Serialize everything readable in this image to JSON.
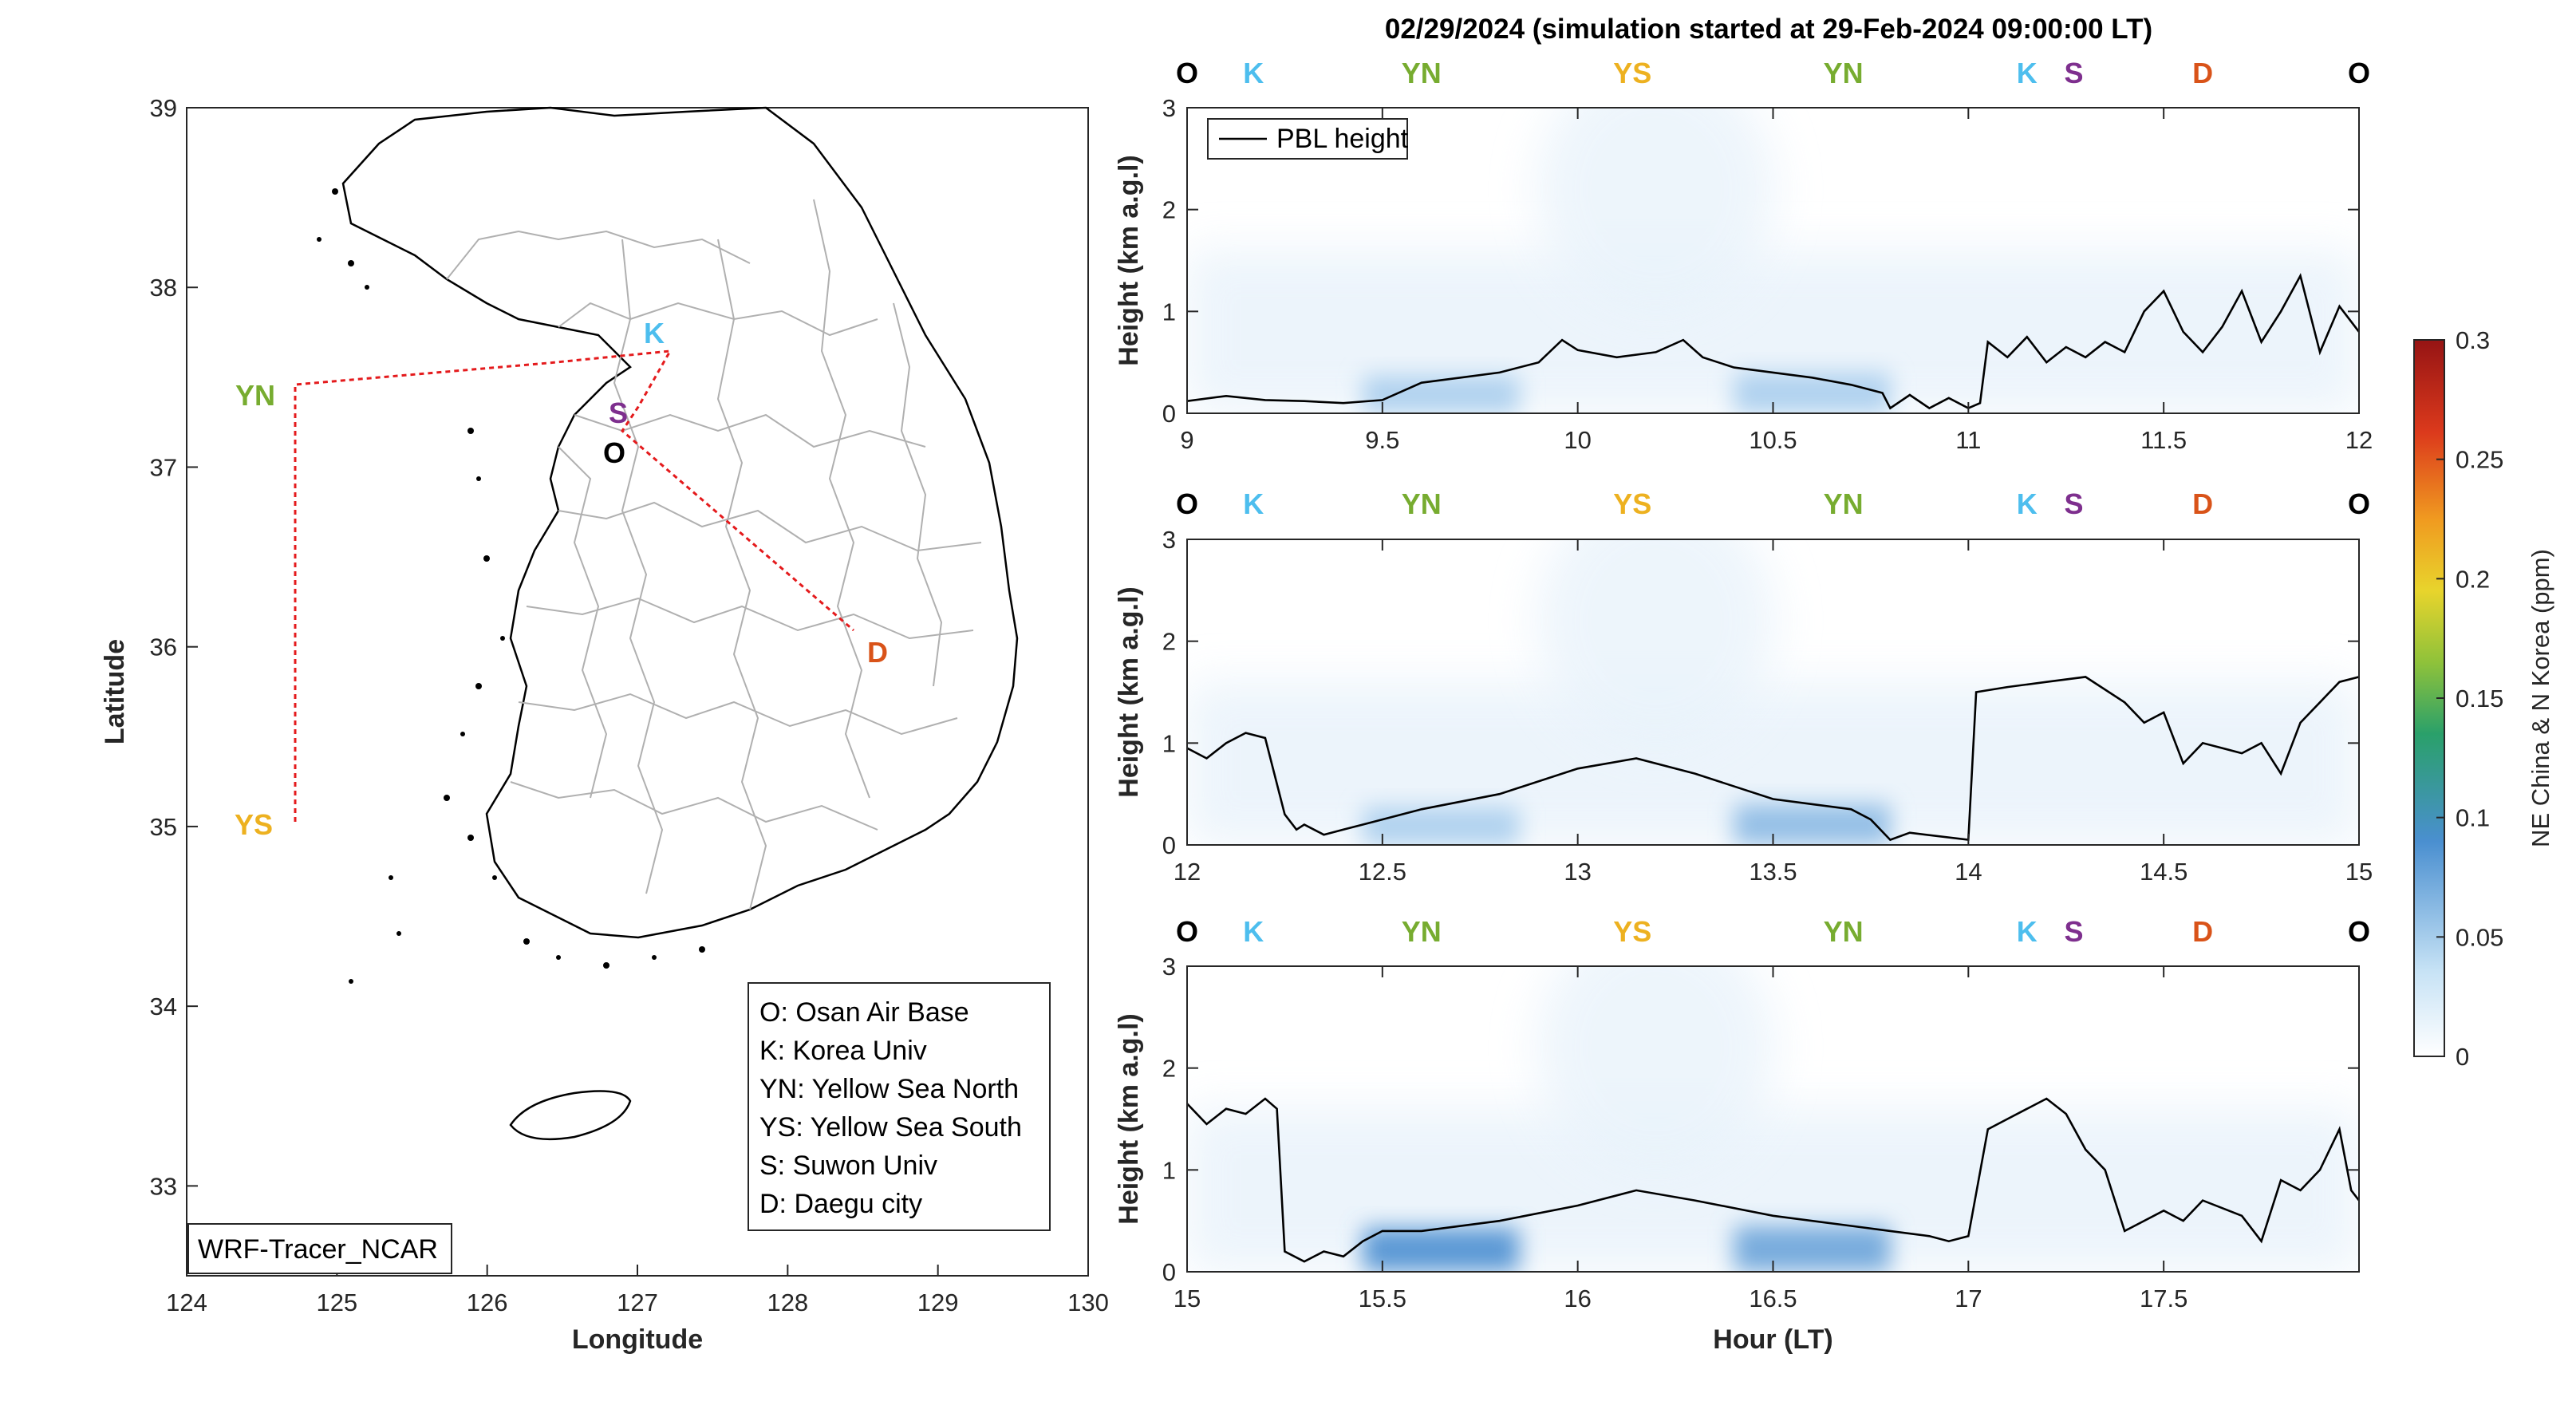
{
  "title": "02/29/2024 (simulation started at 29-Feb-2024 09:00:00 LT)",
  "colors": {
    "O": "#000000",
    "K": "#4DBEEE",
    "YN": "#77AC30",
    "YS": "#EDB120",
    "S": "#7E2F8E",
    "D": "#D95319",
    "track": "#E41A1C",
    "pbl": "#000000"
  },
  "map": {
    "xlabel": "Longitude",
    "ylabel": "Latitude",
    "xlim": [
      124,
      130
    ],
    "ylim": [
      32.5,
      39
    ],
    "xticks": [
      "124",
      "125",
      "126",
      "127",
      "128",
      "129",
      "130"
    ],
    "yticks": [
      "33",
      "34",
      "35",
      "36",
      "37",
      "38",
      "39"
    ],
    "model_label": "WRF-Tracer_NCAR",
    "sites": [
      {
        "code": "K",
        "lon": 127.03,
        "lat": 37.6
      },
      {
        "code": "S",
        "lon": 126.97,
        "lat": 37.3
      },
      {
        "code": "O",
        "lon": 127.05,
        "lat": 37.1
      },
      {
        "code": "D",
        "lon": 128.6,
        "lat": 35.87
      },
      {
        "code": "YN",
        "lon": 124.7,
        "lat": 37.45
      },
      {
        "code": "YS",
        "lon": 124.7,
        "lat": 35.0
      }
    ],
    "legend": [
      "O: Osan Air Base",
      "K: Korea Univ",
      "YN: Yellow Sea North",
      "YS: Yellow Sea South",
      "S: Suwon Univ",
      "D: Daegu city"
    ]
  },
  "chart_data": [
    {
      "type": "line",
      "panel": 1,
      "xlim": [
        9,
        12
      ],
      "ylim": [
        0,
        3
      ],
      "xticks": [
        "9",
        "9.5",
        "10",
        "10.5",
        "11",
        "11.5",
        "12"
      ],
      "yticks": [
        "0",
        "1",
        "2",
        "3"
      ],
      "ylabel": "Height (km a.g.l)",
      "site_markers": [
        {
          "code": "O",
          "x": 9.0
        },
        {
          "code": "K",
          "x": 9.17
        },
        {
          "code": "YN",
          "x": 9.6
        },
        {
          "code": "YS",
          "x": 10.14
        },
        {
          "code": "YN",
          "x": 10.68
        },
        {
          "code": "K",
          "x": 11.15
        },
        {
          "code": "S",
          "x": 11.27
        },
        {
          "code": "D",
          "x": 11.6
        },
        {
          "code": "O",
          "x": 12.0
        }
      ],
      "series": [
        {
          "name": "PBL height",
          "x": [
            9.0,
            9.1,
            9.2,
            9.3,
            9.4,
            9.5,
            9.6,
            9.7,
            9.8,
            9.9,
            9.96,
            10.0,
            10.1,
            10.2,
            10.27,
            10.32,
            10.4,
            10.5,
            10.6,
            10.7,
            10.78,
            10.8,
            10.85,
            10.9,
            10.95,
            11.0,
            11.03,
            11.05,
            11.1,
            11.15,
            11.2,
            11.25,
            11.3,
            11.35,
            11.4,
            11.45,
            11.5,
            11.55,
            11.6,
            11.65,
            11.7,
            11.75,
            11.8,
            11.85,
            11.9,
            11.95,
            12.0
          ],
          "y": [
            0.12,
            0.17,
            0.13,
            0.12,
            0.1,
            0.13,
            0.3,
            0.35,
            0.4,
            0.5,
            0.72,
            0.62,
            0.55,
            0.6,
            0.72,
            0.55,
            0.45,
            0.4,
            0.35,
            0.28,
            0.2,
            0.05,
            0.18,
            0.05,
            0.15,
            0.05,
            0.1,
            0.7,
            0.55,
            0.75,
            0.5,
            0.65,
            0.55,
            0.7,
            0.6,
            1.0,
            1.2,
            0.8,
            0.6,
            0.85,
            1.2,
            0.7,
            1.0,
            1.35,
            0.6,
            1.05,
            0.8
          ]
        }
      ],
      "tracer": [
        {
          "x0": 9.45,
          "x1": 9.85,
          "h": 0.22,
          "c": 0.05
        },
        {
          "x0": 10.4,
          "x1": 10.8,
          "h": 0.25,
          "c": 0.05
        }
      ],
      "legend": "top-left"
    },
    {
      "type": "line",
      "panel": 2,
      "xlim": [
        12,
        15
      ],
      "ylim": [
        0,
        3
      ],
      "xticks": [
        "12",
        "12.5",
        "13",
        "13.5",
        "14",
        "14.5",
        "15"
      ],
      "yticks": [
        "0",
        "1",
        "2",
        "3"
      ],
      "ylabel": "Height (km a.g.l)",
      "site_markers": [
        {
          "code": "O",
          "x": 12.0
        },
        {
          "code": "K",
          "x": 12.17
        },
        {
          "code": "YN",
          "x": 12.6
        },
        {
          "code": "YS",
          "x": 13.14
        },
        {
          "code": "YN",
          "x": 13.68
        },
        {
          "code": "K",
          "x": 14.15
        },
        {
          "code": "S",
          "x": 14.27
        },
        {
          "code": "D",
          "x": 14.6
        },
        {
          "code": "O",
          "x": 15.0
        }
      ],
      "series": [
        {
          "name": "",
          "x": [
            12.0,
            12.05,
            12.1,
            12.15,
            12.2,
            12.25,
            12.28,
            12.3,
            12.35,
            12.4,
            12.45,
            12.5,
            12.6,
            12.8,
            13.0,
            13.15,
            13.3,
            13.5,
            13.6,
            13.7,
            13.75,
            13.8,
            13.85,
            14.0,
            14.02,
            14.1,
            14.2,
            14.3,
            14.4,
            14.45,
            14.5,
            14.55,
            14.6,
            14.7,
            14.75,
            14.8,
            14.85,
            14.9,
            14.95,
            15.0
          ],
          "y": [
            0.95,
            0.85,
            1.0,
            1.1,
            1.05,
            0.3,
            0.15,
            0.2,
            0.1,
            0.15,
            0.2,
            0.25,
            0.35,
            0.5,
            0.75,
            0.85,
            0.7,
            0.45,
            0.4,
            0.35,
            0.25,
            0.05,
            0.12,
            0.05,
            1.5,
            1.55,
            1.6,
            1.65,
            1.4,
            1.2,
            1.3,
            0.8,
            1.0,
            0.9,
            1.0,
            0.7,
            1.2,
            1.4,
            1.6,
            1.65
          ]
        }
      ],
      "tracer": [
        {
          "x0": 12.45,
          "x1": 12.85,
          "h": 0.22,
          "c": 0.05
        },
        {
          "x0": 13.4,
          "x1": 13.8,
          "h": 0.25,
          "c": 0.06
        }
      ]
    },
    {
      "type": "line",
      "panel": 3,
      "xlim": [
        15,
        18
      ],
      "ylim": [
        0,
        3
      ],
      "xticks": [
        "15",
        "15.5",
        "16",
        "16.5",
        "17",
        "17.5"
      ],
      "yticks": [
        "0",
        "1",
        "2",
        "3"
      ],
      "xlabel": "Hour (LT)",
      "ylabel": "Height (km a.g.l)",
      "site_markers": [
        {
          "code": "O",
          "x": 15.0
        },
        {
          "code": "K",
          "x": 15.17
        },
        {
          "code": "YN",
          "x": 15.6
        },
        {
          "code": "YS",
          "x": 16.14
        },
        {
          "code": "YN",
          "x": 16.68
        },
        {
          "code": "K",
          "x": 17.15
        },
        {
          "code": "S",
          "x": 17.27
        },
        {
          "code": "D",
          "x": 17.6
        },
        {
          "code": "O",
          "x": 18.0
        }
      ],
      "series": [
        {
          "name": "",
          "x": [
            15.0,
            15.05,
            15.1,
            15.15,
            15.2,
            15.23,
            15.25,
            15.3,
            15.35,
            15.4,
            15.45,
            15.5,
            15.6,
            15.8,
            16.0,
            16.15,
            16.3,
            16.5,
            16.7,
            16.8,
            16.9,
            16.95,
            17.0,
            17.05,
            17.1,
            17.2,
            17.25,
            17.3,
            17.35,
            17.4,
            17.5,
            17.55,
            17.6,
            17.7,
            17.75,
            17.8,
            17.85,
            17.9,
            17.95,
            17.98,
            18.0
          ],
          "y": [
            1.65,
            1.45,
            1.6,
            1.55,
            1.7,
            1.6,
            0.2,
            0.1,
            0.2,
            0.15,
            0.3,
            0.4,
            0.4,
            0.5,
            0.65,
            0.8,
            0.7,
            0.55,
            0.45,
            0.4,
            0.35,
            0.3,
            0.35,
            1.4,
            1.5,
            1.7,
            1.55,
            1.2,
            1.0,
            0.4,
            0.6,
            0.5,
            0.7,
            0.55,
            0.3,
            0.9,
            0.8,
            1.0,
            1.4,
            0.8,
            0.7
          ]
        }
      ],
      "tracer": [
        {
          "x0": 15.45,
          "x1": 15.85,
          "h": 0.28,
          "c": 0.08
        },
        {
          "x0": 16.4,
          "x1": 16.8,
          "h": 0.3,
          "c": 0.07
        }
      ]
    }
  ],
  "colorbar": {
    "label": "NE China & N Korea (ppm)",
    "clim": [
      0,
      0.3
    ],
    "ticks": [
      "0",
      "0.05",
      "0.1",
      "0.15",
      "0.2",
      "0.25",
      "0.3"
    ]
  }
}
